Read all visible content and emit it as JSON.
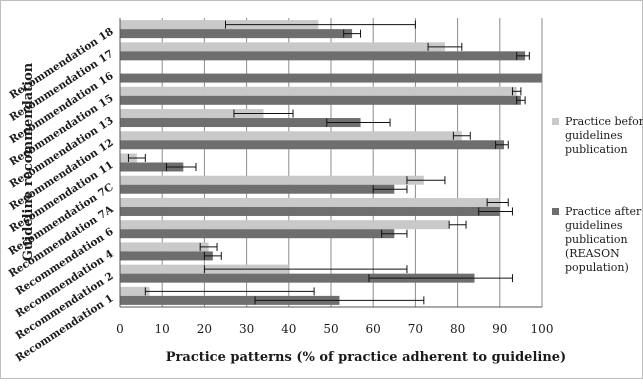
{
  "chart_data": {
    "type": "bar",
    "orientation": "horizontal",
    "xlabel": "Practice patterns (% of practice adherent to guideline)",
    "ylabel": "Guideline recommendation",
    "xlim": [
      0,
      100
    ],
    "xticks": [
      0,
      10,
      20,
      30,
      40,
      50,
      60,
      70,
      80,
      90,
      100
    ],
    "grid": "vertical",
    "legend_position": "right",
    "categories": [
      "Recommendation 18",
      "Recommendation 17",
      "Recommendation 16",
      "Recommendation 15",
      "Recommendation 13",
      "Recommendation 12",
      "Recommendation 11",
      "Recommendation 7C",
      "Recommendation 7A",
      "Recommendation 6",
      "Recommendation 4",
      "Recommendation 2",
      "Recommendation 1"
    ],
    "series": [
      {
        "name": "Practice before guidelines publication",
        "color": "#c9c9c9",
        "values": [
          47,
          77,
          null,
          94,
          34,
          81,
          4,
          72,
          90,
          78,
          21,
          40,
          7
        ],
        "error_low": [
          25,
          73,
          null,
          93,
          27,
          79,
          2,
          68,
          87,
          78,
          19,
          20,
          6
        ],
        "error_high": [
          70,
          81,
          null,
          95,
          41,
          83,
          6,
          77,
          92,
          82,
          23,
          68,
          46
        ]
      },
      {
        "name": "Practice after guidelines publication (REASON population)",
        "color": "#6e6e6e",
        "values": [
          55,
          96,
          100,
          95,
          57,
          91,
          15,
          65,
          90,
          65,
          22,
          84,
          52
        ],
        "error_low": [
          53,
          94,
          null,
          94,
          49,
          89,
          11,
          60,
          85,
          62,
          20,
          59,
          32
        ],
        "error_high": [
          57,
          97,
          null,
          96,
          64,
          92,
          18,
          68,
          93,
          68,
          24,
          93,
          72
        ]
      }
    ]
  }
}
